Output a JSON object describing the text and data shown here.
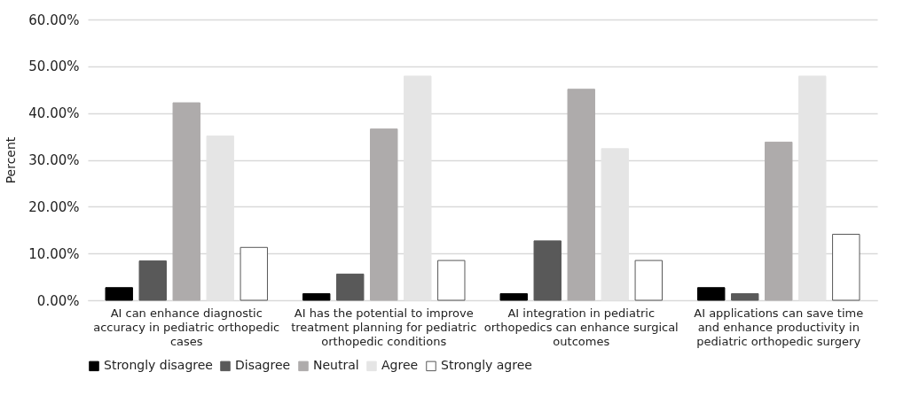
{
  "chart_data": {
    "type": "bar",
    "ylabel": "Percent",
    "categories": [
      "AI can enhance diagnostic accuracy in pediatric orthopedic cases",
      "AI has the potential to improve treatment planning for pediatric orthopedic conditions",
      "AI integration in pediatric orthopedics can enhance surgical outcomes",
      "AI applications can save time and enhance productivity in pediatric orthopedic surgery"
    ],
    "series": [
      {
        "name": "Strongly disagree",
        "color": "#000000",
        "values": [
          2.7,
          1.4,
          1.4,
          2.7
        ]
      },
      {
        "name": "Disagree",
        "color": "#595959",
        "values": [
          8.4,
          5.6,
          12.7,
          1.4
        ]
      },
      {
        "name": "Neutral",
        "color": "#aeabab",
        "values": [
          42.2,
          36.6,
          45.1,
          33.8
        ]
      },
      {
        "name": "Agree",
        "color": "#e5e5e5",
        "values": [
          35.1,
          47.9,
          32.4,
          47.9
        ]
      },
      {
        "name": "Strongly agree",
        "color": "#ffffff",
        "values": [
          11.3,
          8.5,
          8.5,
          14.1
        ]
      }
    ],
    "ylim": [
      0,
      60
    ],
    "yticks": [
      {
        "value": 0,
        "label": "0.00%"
      },
      {
        "value": 10,
        "label": "10.00%"
      },
      {
        "value": 20,
        "label": "20.00%"
      },
      {
        "value": 30,
        "label": "30.00%"
      },
      {
        "value": 40,
        "label": "40.00%"
      },
      {
        "value": 50,
        "label": "50.00%"
      },
      {
        "value": 60,
        "label": "60.00%"
      }
    ],
    "grid": "y",
    "legend": "bottom"
  }
}
